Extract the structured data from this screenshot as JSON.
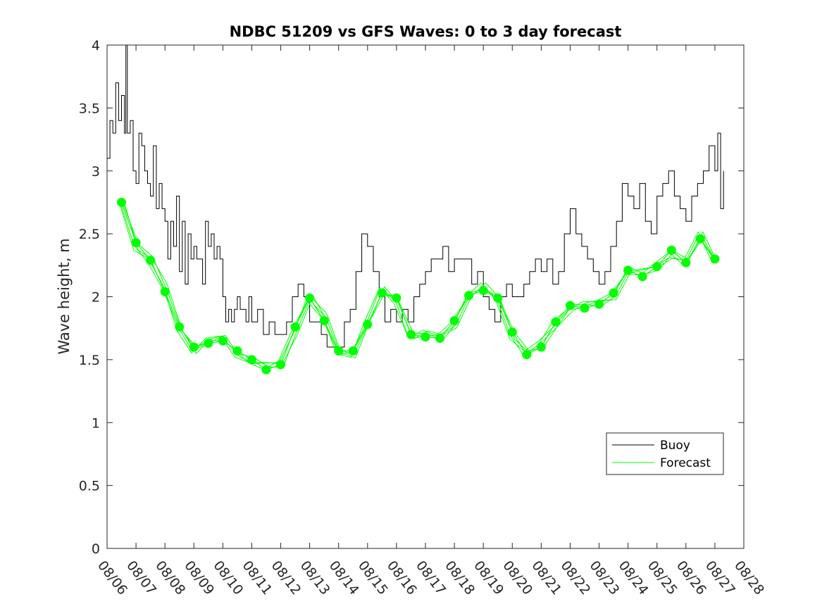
{
  "chart_data": {
    "type": "line",
    "title": "NDBC 51209 vs GFS Waves: 0 to 3 day forecast",
    "xlabel": "",
    "ylabel": "Wave height, m",
    "x_ticks": [
      "08/06",
      "08/07",
      "08/08",
      "08/09",
      "08/10",
      "08/11",
      "08/12",
      "08/13",
      "08/14",
      "08/15",
      "08/16",
      "08/17",
      "08/18",
      "08/19",
      "08/20",
      "08/21",
      "08/22",
      "08/23",
      "08/24",
      "08/25",
      "08/26",
      "08/27",
      "08/28"
    ],
    "xlim": [
      0,
      22
    ],
    "ylim": [
      0,
      4
    ],
    "y_ticks": [
      0,
      0.5,
      1,
      1.5,
      2,
      2.5,
      3,
      3.5,
      4
    ],
    "legend": {
      "position": "bottom-right",
      "entries": [
        "Buoy",
        "Forecast"
      ]
    },
    "series": [
      {
        "name": "Buoy",
        "color": "#000000",
        "x": [
          0.0,
          0.1,
          0.2,
          0.3,
          0.4,
          0.5,
          0.6,
          0.65,
          0.7,
          0.8,
          0.9,
          1.0,
          1.1,
          1.2,
          1.3,
          1.4,
          1.5,
          1.6,
          1.7,
          1.8,
          1.9,
          2.0,
          2.1,
          2.2,
          2.3,
          2.4,
          2.5,
          2.6,
          2.7,
          2.8,
          2.9,
          3.0,
          3.1,
          3.2,
          3.3,
          3.4,
          3.5,
          3.6,
          3.7,
          3.8,
          3.9,
          4.0,
          4.1,
          4.2,
          4.3,
          4.4,
          4.5,
          4.6,
          4.7,
          4.8,
          4.9,
          5.0,
          5.2,
          5.4,
          5.6,
          5.8,
          6.0,
          6.2,
          6.4,
          6.6,
          6.8,
          7.0,
          7.2,
          7.4,
          7.6,
          7.8,
          8.0,
          8.2,
          8.4,
          8.6,
          8.8,
          9.0,
          9.2,
          9.4,
          9.6,
          9.8,
          10.0,
          10.2,
          10.4,
          10.6,
          10.8,
          11.0,
          11.2,
          11.4,
          11.6,
          11.8,
          12.0,
          12.2,
          12.4,
          12.6,
          12.8,
          13.0,
          13.2,
          13.4,
          13.6,
          13.8,
          14.0,
          14.2,
          14.4,
          14.6,
          14.8,
          15.0,
          15.2,
          15.4,
          15.6,
          15.8,
          16.0,
          16.2,
          16.4,
          16.6,
          16.8,
          17.0,
          17.2,
          17.4,
          17.6,
          17.8,
          18.0,
          18.2,
          18.4,
          18.6,
          18.8,
          19.0,
          19.2,
          19.4,
          19.6,
          19.8,
          20.0,
          20.2,
          20.4,
          20.6,
          20.8,
          21.0,
          21.1,
          21.2,
          21.3
        ],
        "y": [
          3.1,
          3.4,
          3.3,
          3.7,
          3.4,
          3.6,
          3.3,
          4.0,
          3.3,
          3.4,
          3.0,
          2.9,
          3.3,
          3.2,
          3.0,
          2.9,
          2.8,
          3.2,
          2.7,
          2.9,
          2.7,
          2.6,
          2.3,
          2.6,
          2.4,
          2.8,
          2.2,
          2.6,
          2.1,
          2.5,
          2.3,
          2.4,
          2.3,
          2.3,
          2.1,
          2.6,
          2.4,
          2.5,
          2.3,
          2.4,
          2.3,
          2.0,
          1.8,
          1.9,
          1.8,
          1.9,
          2.0,
          1.9,
          1.9,
          1.8,
          2.0,
          1.8,
          1.9,
          1.7,
          1.8,
          1.7,
          1.7,
          1.8,
          2.0,
          2.1,
          2.0,
          1.8,
          1.8,
          1.7,
          1.6,
          1.6,
          1.6,
          1.8,
          1.9,
          2.2,
          2.5,
          2.4,
          2.2,
          2.0,
          1.8,
          1.9,
          1.8,
          1.9,
          1.8,
          2.0,
          2.1,
          2.2,
          2.3,
          2.3,
          2.4,
          2.2,
          2.3,
          2.3,
          2.3,
          2.1,
          2.2,
          2.0,
          1.9,
          1.8,
          2.0,
          2.1,
          2.0,
          2.0,
          2.1,
          2.2,
          2.3,
          2.2,
          2.3,
          2.1,
          2.2,
          2.5,
          2.7,
          2.5,
          2.4,
          2.3,
          2.2,
          2.1,
          2.2,
          2.4,
          2.6,
          2.9,
          2.8,
          2.7,
          2.9,
          2.6,
          2.5,
          2.8,
          2.9,
          3.0,
          2.8,
          2.7,
          2.6,
          2.8,
          2.9,
          3.0,
          3.2,
          3.0,
          3.3,
          2.7,
          3.0
        ]
      },
      {
        "name": "Forecast",
        "color": "#00ff00",
        "x": [
          0.5,
          1.0,
          1.5,
          2.0,
          2.5,
          3.0,
          3.5,
          4.0,
          4.5,
          5.0,
          5.5,
          6.0,
          6.5,
          7.0,
          7.5,
          8.0,
          8.5,
          9.0,
          9.5,
          10.0,
          10.5,
          11.0,
          11.5,
          12.0,
          12.5,
          13.0,
          13.5,
          14.0,
          14.5,
          15.0,
          15.5,
          16.0,
          16.5,
          17.0,
          17.5,
          18.0,
          18.5,
          19.0,
          19.5,
          20.0,
          20.5,
          21.0
        ],
        "y": [
          2.75,
          2.43,
          2.29,
          2.04,
          1.76,
          1.6,
          1.63,
          1.65,
          1.57,
          1.5,
          1.42,
          1.46,
          1.76,
          1.99,
          1.81,
          1.57,
          1.57,
          1.78,
          2.03,
          1.99,
          1.7,
          1.68,
          1.67,
          1.81,
          2.01,
          2.05,
          1.99,
          1.72,
          1.54,
          1.6,
          1.8,
          1.93,
          1.91,
          1.94,
          2.03,
          2.21,
          2.16,
          2.24,
          2.37,
          2.27,
          2.46,
          2.3
        ]
      }
    ]
  }
}
